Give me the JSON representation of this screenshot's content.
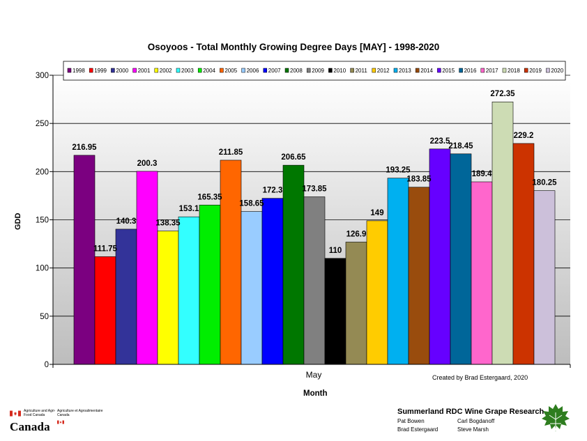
{
  "chart_data": {
    "type": "bar",
    "title": "Osoyoos - Total Monthly Growing Degree Days [MAY] - 1998-2020",
    "xlabel": "Month",
    "ylabel": "GDD",
    "categories": [
      "May"
    ],
    "ylim": [
      0,
      300
    ],
    "yticks": [
      0,
      50,
      100,
      150,
      200,
      250,
      300
    ],
    "grid": true,
    "legend_position": "top",
    "series": [
      {
        "name": "1998",
        "values": [
          216.95
        ],
        "label": "216.95",
        "color": "#7b0080"
      },
      {
        "name": "1999",
        "values": [
          111.75
        ],
        "label": "111.75",
        "color": "#ff0000"
      },
      {
        "name": "2000",
        "values": [
          140.3
        ],
        "label": "140.3",
        "color": "#333399"
      },
      {
        "name": "2001",
        "values": [
          200.3
        ],
        "label": "200.3",
        "color": "#ff00ff"
      },
      {
        "name": "2002",
        "values": [
          138.35
        ],
        "label": "138.35",
        "color": "#ffff00"
      },
      {
        "name": "2003",
        "values": [
          153.1
        ],
        "label": "153.1",
        "color": "#33ffff"
      },
      {
        "name": "2004",
        "values": [
          165.35
        ],
        "label": "165.35",
        "color": "#00ee00"
      },
      {
        "name": "2005",
        "values": [
          211.85
        ],
        "label": "211.85",
        "color": "#ff6600"
      },
      {
        "name": "2006",
        "values": [
          158.65
        ],
        "label": "158.65",
        "color": "#99ccff"
      },
      {
        "name": "2007",
        "values": [
          172.3
        ],
        "label": "172.3",
        "color": "#0000ff"
      },
      {
        "name": "2008",
        "values": [
          206.65
        ],
        "label": "206.65",
        "color": "#007700"
      },
      {
        "name": "2009",
        "values": [
          173.85
        ],
        "label": "173.85",
        "color": "#808080"
      },
      {
        "name": "2010",
        "values": [
          110
        ],
        "label": "110",
        "color": "#000000"
      },
      {
        "name": "2011",
        "values": [
          126.9
        ],
        "label": "126.9",
        "color": "#948a54"
      },
      {
        "name": "2012",
        "values": [
          149
        ],
        "label": "149",
        "color": "#ffcc00"
      },
      {
        "name": "2013",
        "values": [
          193.25
        ],
        "label": "193.25",
        "color": "#00b0f0"
      },
      {
        "name": "2014",
        "values": [
          183.85
        ],
        "label": "183.85",
        "color": "#994c0d"
      },
      {
        "name": "2015",
        "values": [
          223.5
        ],
        "label": "223.5",
        "color": "#6600ff"
      },
      {
        "name": "2016",
        "values": [
          218.45
        ],
        "label": "218.45",
        "color": "#006699"
      },
      {
        "name": "2017",
        "values": [
          189.4
        ],
        "label": "189.4",
        "color": "#ff66cc"
      },
      {
        "name": "2018",
        "values": [
          272.35
        ],
        "label": "272.35",
        "color": "#cddcb4"
      },
      {
        "name": "2019",
        "values": [
          229.2
        ],
        "label": "229.2",
        "color": "#cc3300"
      },
      {
        "name": "2020",
        "values": [
          180.25
        ],
        "label": "180.25",
        "color": "#ccc0da"
      }
    ]
  },
  "credit": "Created by Brad Estergaard, 2020",
  "footer": {
    "agency_en": "Agriculture and Agri-Food Canada",
    "agency_fr": "Agriculture et Agroalimentaire Canada",
    "wordmark": "Canada",
    "research_title": "Summerland RDC Wine Grape Research",
    "names": [
      "Pat Bowen",
      "Carl Bogdanoff",
      "Brad Estergaard",
      "Steve Marsh"
    ]
  },
  "colors": {
    "plot_top": "#ffffff",
    "plot_bottom": "#bdbdbd",
    "canada_red": "#d52b1e",
    "leaf_green": "#2e7d1f"
  }
}
